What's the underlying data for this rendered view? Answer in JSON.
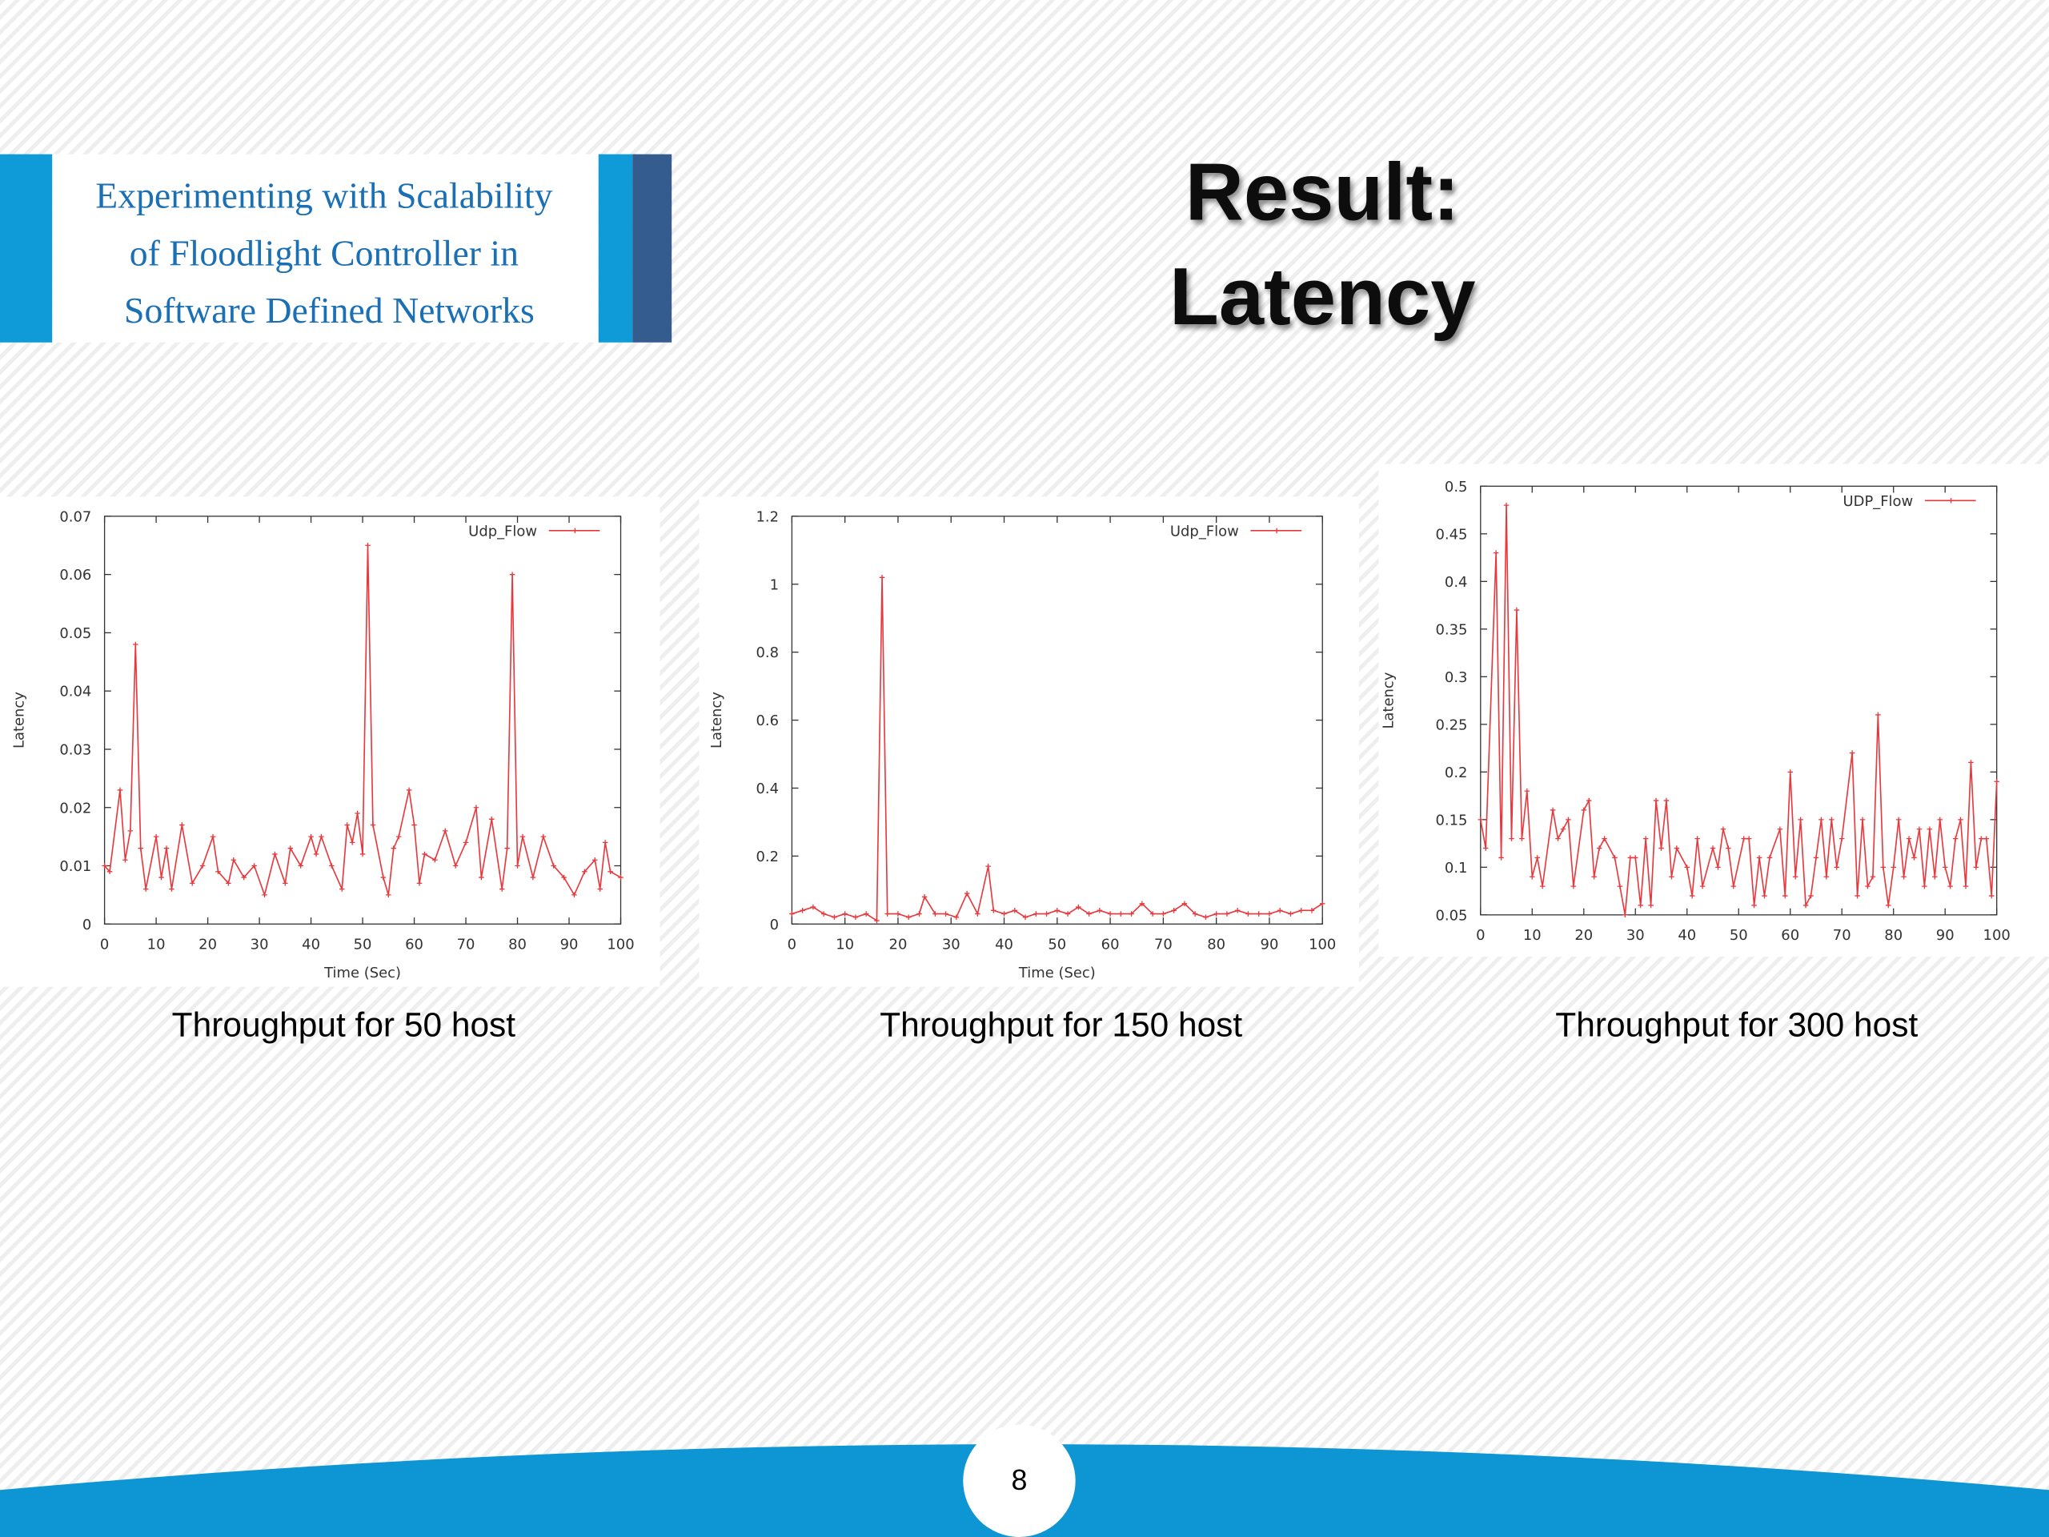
{
  "header": {
    "lines": [
      "Experimenting with Scalability",
      "of Floodlight Controller in",
      "Software Defined Networks"
    ]
  },
  "title": {
    "lines": [
      "Result:",
      "Latency"
    ]
  },
  "captions": [
    "Throughput for 50 host",
    "Throughput for 150 host",
    "Throughput for 300 host"
  ],
  "page_number": 8,
  "chart_data": [
    {
      "type": "line",
      "xlabel": "Time (Sec)",
      "ylabel": "Latency",
      "x": [
        0,
        1,
        3,
        4,
        5,
        6,
        7,
        8,
        10,
        11,
        12,
        13,
        15,
        17,
        19,
        21,
        22,
        24,
        25,
        27,
        29,
        31,
        33,
        35,
        36,
        38,
        40,
        41,
        42,
        44,
        46,
        47,
        48,
        49,
        50,
        51,
        52,
        54,
        55,
        56,
        57,
        59,
        60,
        61,
        62,
        64,
        66,
        68,
        70,
        72,
        73,
        75,
        77,
        78,
        79,
        80,
        81,
        83,
        85,
        87,
        89,
        91,
        93,
        95,
        96,
        97,
        98,
        100
      ],
      "series": [
        {
          "name": "Udp_Flow",
          "color": "#e8383d",
          "values": [
            0.01,
            0.009,
            0.023,
            0.011,
            0.016,
            0.048,
            0.013,
            0.006,
            0.015,
            0.008,
            0.013,
            0.006,
            0.017,
            0.007,
            0.01,
            0.015,
            0.009,
            0.007,
            0.011,
            0.008,
            0.01,
            0.005,
            0.012,
            0.007,
            0.013,
            0.01,
            0.015,
            0.012,
            0.015,
            0.01,
            0.006,
            0.017,
            0.014,
            0.019,
            0.012,
            0.065,
            0.017,
            0.008,
            0.005,
            0.013,
            0.015,
            0.023,
            0.017,
            0.007,
            0.012,
            0.011,
            0.016,
            0.01,
            0.014,
            0.02,
            0.008,
            0.018,
            0.006,
            0.013,
            0.06,
            0.01,
            0.015,
            0.008,
            0.015,
            0.01,
            0.008,
            0.005,
            0.009,
            0.011,
            0.006,
            0.014,
            0.009,
            0.008
          ]
        }
      ],
      "xlim": [
        0,
        100
      ],
      "xticks": [
        0,
        10,
        20,
        30,
        40,
        50,
        60,
        70,
        80,
        90,
        100
      ],
      "ylim": [
        0,
        0.07
      ],
      "yticks": [
        0,
        0.01,
        0.02,
        0.03,
        0.04,
        0.05,
        0.06,
        0.07
      ]
    },
    {
      "type": "line",
      "xlabel": "Time (Sec)",
      "ylabel": "Latency",
      "x": [
        0,
        2,
        4,
        6,
        8,
        10,
        12,
        14,
        16,
        17,
        18,
        20,
        22,
        24,
        25,
        27,
        29,
        31,
        33,
        35,
        37,
        38,
        40,
        42,
        44,
        46,
        48,
        50,
        52,
        54,
        56,
        58,
        60,
        62,
        64,
        66,
        68,
        70,
        72,
        74,
        76,
        78,
        80,
        82,
        84,
        86,
        88,
        90,
        92,
        94,
        96,
        98,
        100
      ],
      "series": [
        {
          "name": "Udp_Flow",
          "color": "#e8383d",
          "values": [
            0.03,
            0.04,
            0.05,
            0.03,
            0.02,
            0.03,
            0.02,
            0.03,
            0.01,
            1.02,
            0.03,
            0.03,
            0.02,
            0.03,
            0.08,
            0.03,
            0.03,
            0.02,
            0.09,
            0.03,
            0.17,
            0.04,
            0.03,
            0.04,
            0.02,
            0.03,
            0.03,
            0.04,
            0.03,
            0.05,
            0.03,
            0.04,
            0.03,
            0.03,
            0.03,
            0.06,
            0.03,
            0.03,
            0.04,
            0.06,
            0.03,
            0.02,
            0.03,
            0.03,
            0.04,
            0.03,
            0.03,
            0.03,
            0.04,
            0.03,
            0.04,
            0.04,
            0.06
          ]
        }
      ],
      "xlim": [
        0,
        100
      ],
      "xticks": [
        0,
        10,
        20,
        30,
        40,
        50,
        60,
        70,
        80,
        90,
        100
      ],
      "ylim": [
        0,
        1.2
      ],
      "yticks": [
        0,
        0.2,
        0.4,
        0.6,
        0.8,
        1,
        1.2
      ]
    },
    {
      "type": "line",
      "ylabel": "Latency",
      "x": [
        0,
        1,
        3,
        4,
        5,
        6,
        7,
        8,
        9,
        10,
        11,
        12,
        14,
        15,
        16,
        17,
        18,
        20,
        21,
        22,
        23,
        24,
        26,
        27,
        28,
        29,
        30,
        31,
        32,
        33,
        34,
        35,
        36,
        37,
        38,
        40,
        41,
        42,
        43,
        45,
        46,
        47,
        48,
        49,
        51,
        52,
        53,
        54,
        55,
        56,
        58,
        59,
        60,
        61,
        62,
        63,
        64,
        65,
        66,
        67,
        68,
        69,
        70,
        72,
        73,
        74,
        75,
        76,
        77,
        78,
        79,
        80,
        81,
        82,
        83,
        84,
        85,
        86,
        87,
        88,
        89,
        90,
        91,
        92,
        93,
        94,
        95,
        96,
        97,
        98,
        99,
        100
      ],
      "series": [
        {
          "name": "UDP_Flow",
          "color": "#e8383d",
          "values": [
            0.15,
            0.12,
            0.43,
            0.11,
            0.48,
            0.13,
            0.37,
            0.13,
            0.18,
            0.09,
            0.11,
            0.08,
            0.16,
            0.13,
            0.14,
            0.15,
            0.08,
            0.16,
            0.17,
            0.09,
            0.12,
            0.13,
            0.11,
            0.08,
            0.05,
            0.11,
            0.11,
            0.06,
            0.13,
            0.06,
            0.17,
            0.12,
            0.17,
            0.09,
            0.12,
            0.1,
            0.07,
            0.13,
            0.08,
            0.12,
            0.1,
            0.14,
            0.12,
            0.08,
            0.13,
            0.13,
            0.06,
            0.11,
            0.07,
            0.11,
            0.14,
            0.07,
            0.2,
            0.09,
            0.15,
            0.06,
            0.07,
            0.11,
            0.15,
            0.09,
            0.15,
            0.1,
            0.13,
            0.22,
            0.07,
            0.15,
            0.08,
            0.09,
            0.26,
            0.1,
            0.06,
            0.1,
            0.15,
            0.09,
            0.13,
            0.11,
            0.14,
            0.08,
            0.14,
            0.09,
            0.15,
            0.1,
            0.08,
            0.13,
            0.15,
            0.08,
            0.21,
            0.1,
            0.13,
            0.13,
            0.07,
            0.19
          ]
        }
      ],
      "xlim": [
        0,
        100
      ],
      "xticks": [
        0,
        10,
        20,
        30,
        40,
        50,
        60,
        70,
        80,
        90,
        100
      ],
      "ylim": [
        0.05,
        0.5
      ],
      "yticks": [
        0.05,
        0.1,
        0.15,
        0.2,
        0.25,
        0.3,
        0.35,
        0.4,
        0.45,
        0.5
      ]
    }
  ]
}
